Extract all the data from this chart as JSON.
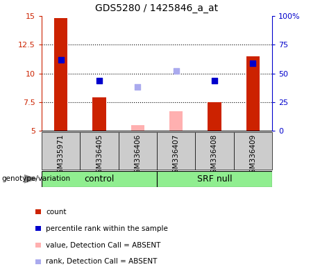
{
  "title": "GDS5280 / 1425846_a_at",
  "samples": [
    "GSM335971",
    "GSM336405",
    "GSM336406",
    "GSM336407",
    "GSM336408",
    "GSM336409"
  ],
  "red_bar_values": [
    14.8,
    7.9,
    null,
    null,
    7.5,
    11.5
  ],
  "pink_bar_values": [
    null,
    null,
    5.5,
    6.7,
    null,
    null
  ],
  "blue_square_values": [
    11.2,
    9.4,
    null,
    null,
    9.4,
    10.9
  ],
  "light_blue_square_values": [
    null,
    null,
    8.8,
    10.2,
    null,
    null
  ],
  "ylim_left": [
    5,
    15
  ],
  "ylim_right": [
    0,
    100
  ],
  "yticks_left": [
    5,
    7.5,
    10,
    12.5,
    15
  ],
  "ytick_labels_left": [
    "5",
    "7.5",
    "10",
    "12.5",
    "15"
  ],
  "yticks_right_pct": [
    0,
    25,
    50,
    75,
    100
  ],
  "ytick_labels_right": [
    "0",
    "25",
    "50",
    "75",
    "100%"
  ],
  "control_indices": [
    0,
    1,
    2
  ],
  "srf_indices": [
    3,
    4,
    5
  ],
  "red_color": "#cc2200",
  "pink_color": "#ffb0b0",
  "blue_color": "#0000cc",
  "light_blue_color": "#aaaaee",
  "bar_width": 0.35,
  "left_axis_color": "#cc2200",
  "right_axis_color": "#0000cc",
  "genotype_label": "genotype/variation",
  "group_bg_color": "#90EE90",
  "sample_bg_color": "#cccccc",
  "legend_items": [
    {
      "label": "count",
      "color": "#cc2200"
    },
    {
      "label": "percentile rank within the sample",
      "color": "#0000cc"
    },
    {
      "label": "value, Detection Call = ABSENT",
      "color": "#ffb0b0"
    },
    {
      "label": "rank, Detection Call = ABSENT",
      "color": "#aaaaee"
    }
  ]
}
